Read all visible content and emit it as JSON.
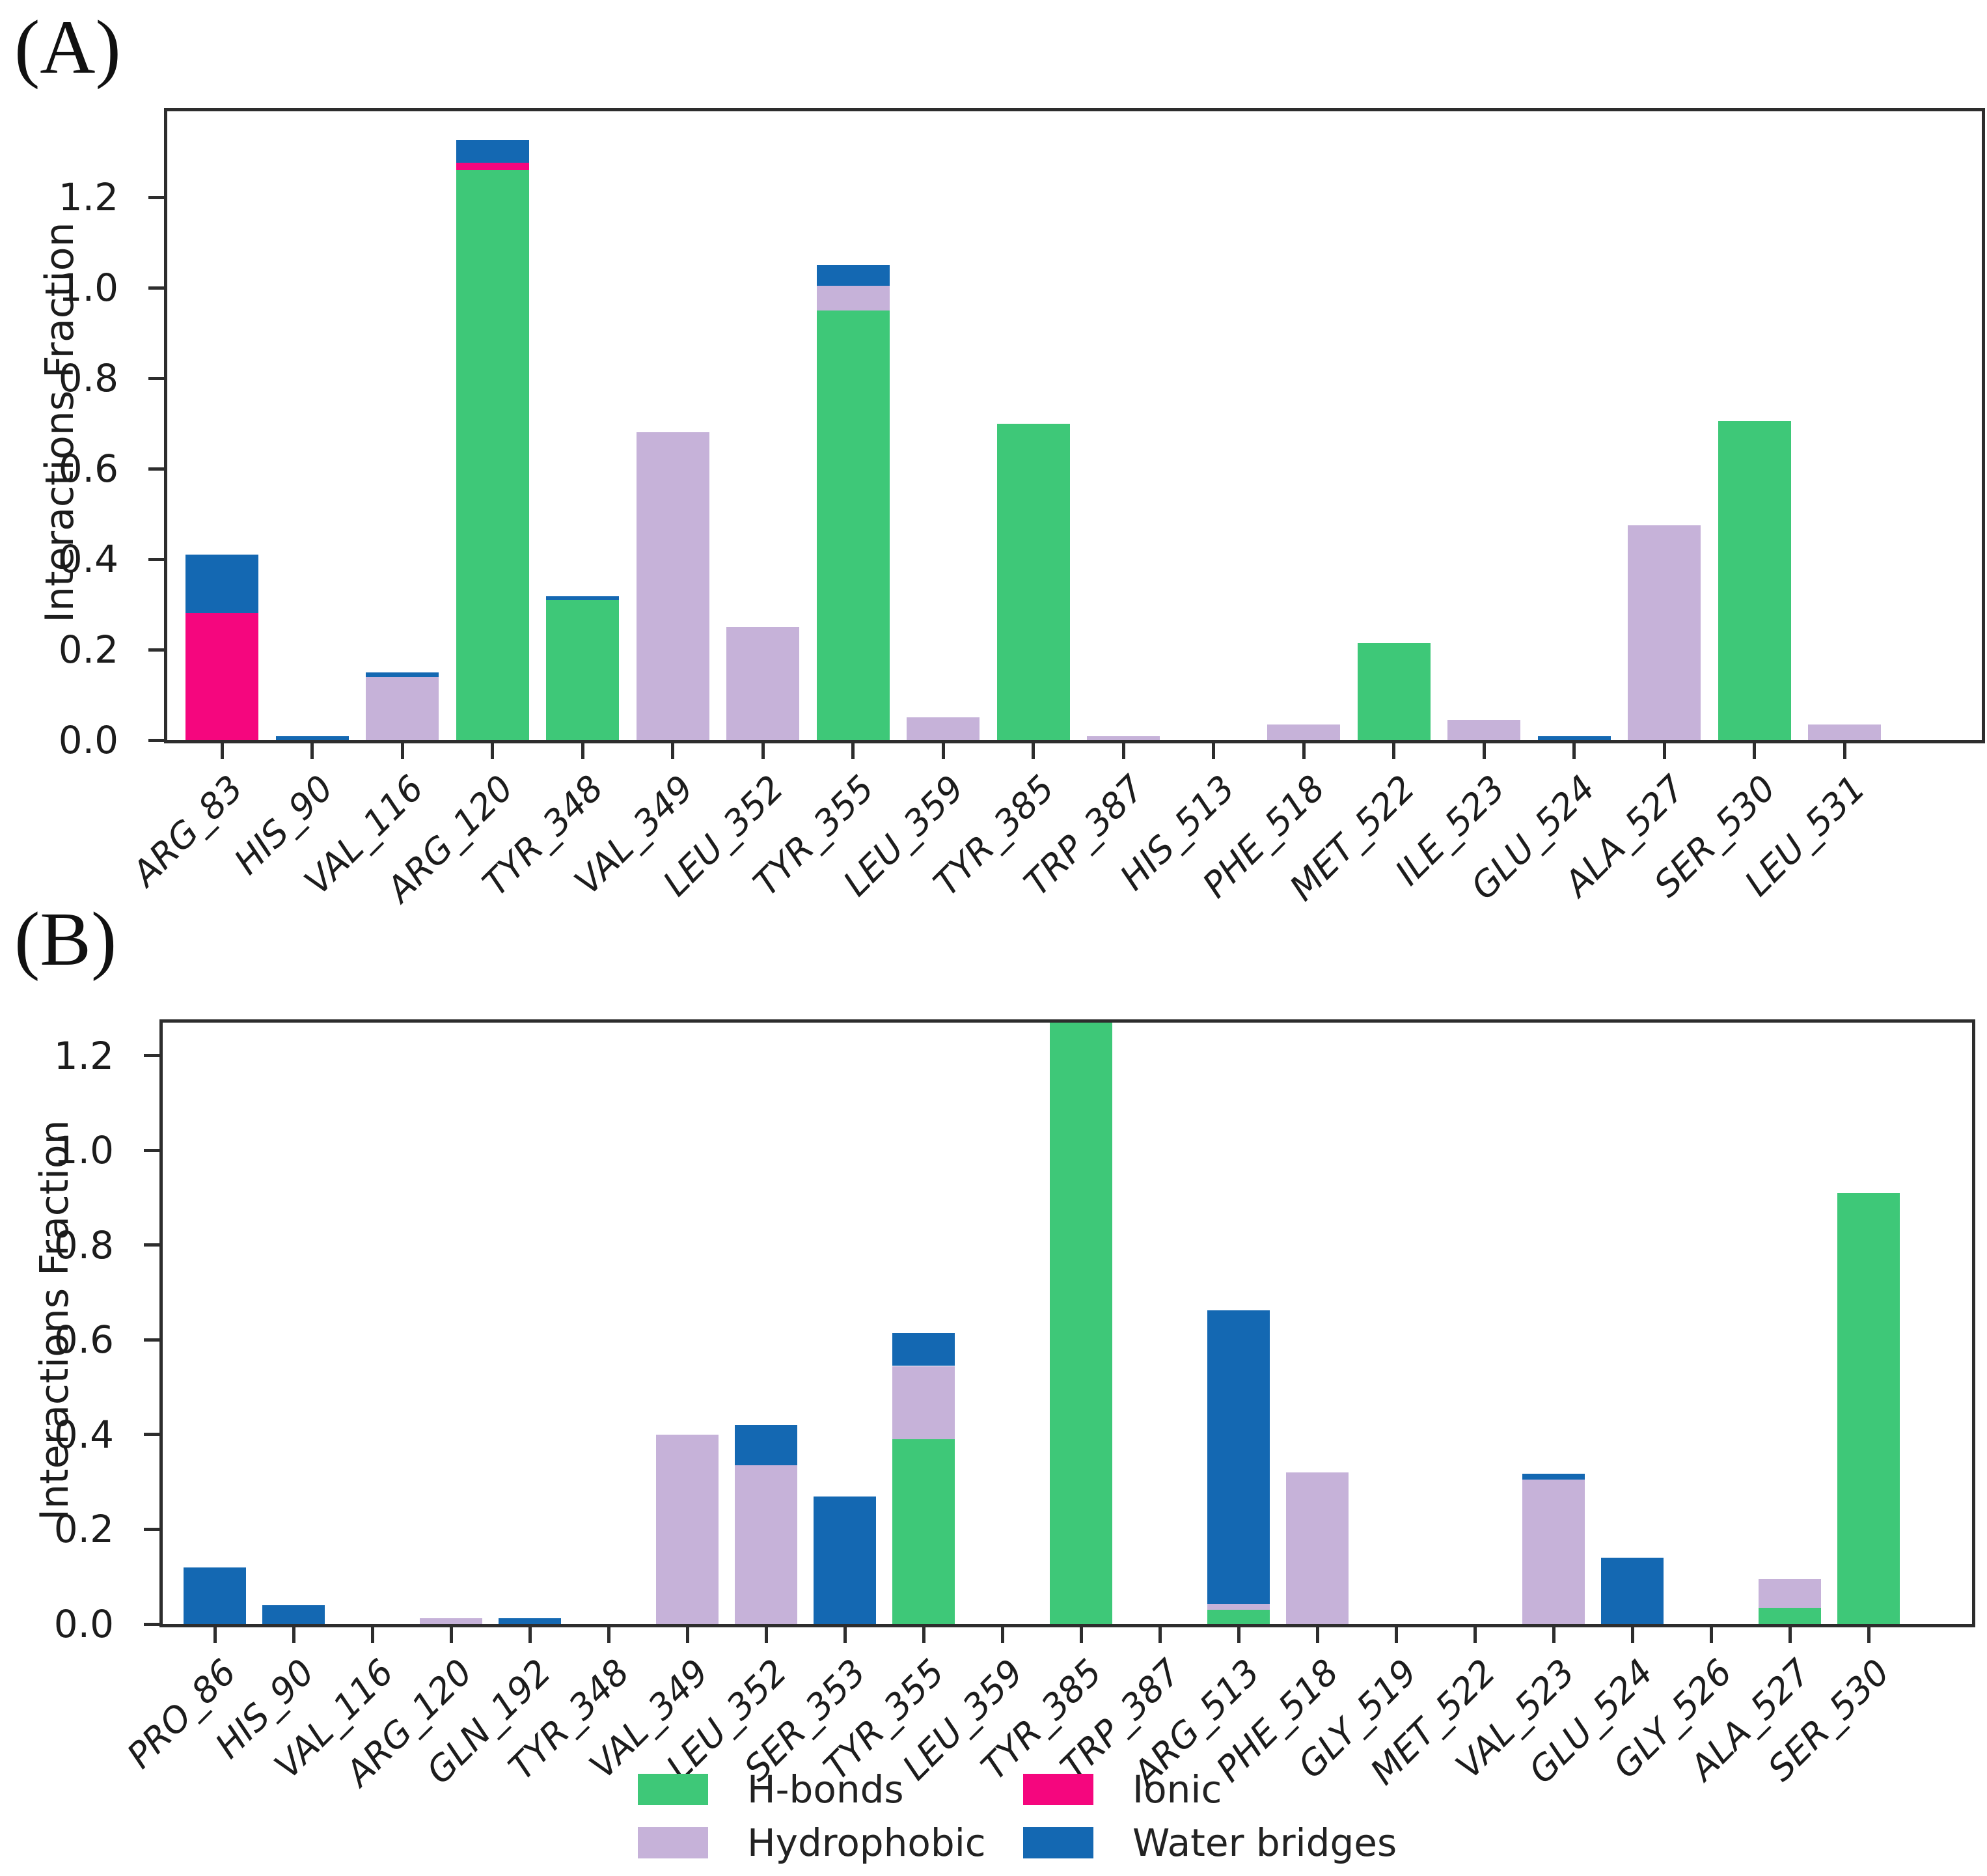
{
  "panel_a": {
    "label": "(A)"
  },
  "panel_b": {
    "label": "(B)"
  },
  "axis": {
    "ylabel": "Interactions Fraction",
    "yticks": [
      "0.0",
      "0.2",
      "0.4",
      "0.6",
      "0.8",
      "1.0",
      "1.2"
    ]
  },
  "colors": {
    "h_bonds": "#3ec878",
    "hydrophobic": "#c6b2d9",
    "ionic": "#f5067e",
    "water_bridges": "#1468b2",
    "frame": "#2d2d2d",
    "text": "#1c1c1c"
  },
  "legend": {
    "items": [
      {
        "label": "H-bonds",
        "color": "#3ec878",
        "key": "h_bonds"
      },
      {
        "label": "Hydrophobic",
        "color": "#c6b2d9",
        "key": "hydrophobic"
      },
      {
        "label": "Ionic",
        "color": "#f5067e",
        "key": "ionic"
      },
      {
        "label": "Water bridges",
        "color": "#1468b2",
        "key": "water_bridges"
      }
    ]
  },
  "chart_data": [
    {
      "id": "A",
      "type": "bar",
      "stacked": true,
      "title": "",
      "xlabel": "",
      "ylabel": "Interactions Fraction",
      "ylim": [
        0,
        1.39
      ],
      "yticks": [
        0.0,
        0.2,
        0.4,
        0.6,
        0.8,
        1.0,
        1.2
      ],
      "grid": false,
      "legend_position": "below-figure",
      "stack_order": [
        "H-bonds",
        "Hydrophobic",
        "Ionic",
        "Water bridges"
      ],
      "categories": [
        "ARG_83",
        "HIS_90",
        "VAL_116",
        "ARG_120",
        "TYR_348",
        "VAL_349",
        "LEU_352",
        "TYR_355",
        "LEU_359",
        "TYR_385",
        "TRP_387",
        "HIS_513",
        "PHE_518",
        "MET_522",
        "ILE_523",
        "GLU_524",
        "ALA_527",
        "SER_530",
        "LEU_531"
      ],
      "series": [
        {
          "name": "H-bonds",
          "values": [
            0,
            0,
            0,
            1.26,
            0.31,
            0,
            0,
            0.95,
            0,
            0.7,
            0,
            0,
            0,
            0.215,
            0,
            0,
            0,
            0.705,
            0
          ]
        },
        {
          "name": "Hydrophobic",
          "values": [
            0,
            0,
            0.14,
            0,
            0,
            0.68,
            0.25,
            0.055,
            0.05,
            0,
            0.008,
            0,
            0.035,
            0,
            0.045,
            0,
            0.475,
            0,
            0.035
          ]
        },
        {
          "name": "Ionic",
          "values": [
            0.28,
            0,
            0,
            0.017,
            0,
            0,
            0,
            0,
            0,
            0,
            0,
            0,
            0,
            0,
            0,
            0,
            0,
            0,
            0
          ]
        },
        {
          "name": "Water bridges",
          "values": [
            0.13,
            0.008,
            0.01,
            0.05,
            0.008,
            0,
            0,
            0.045,
            0,
            0,
            0,
            0,
            0,
            0,
            0,
            0.008,
            0,
            0,
            0
          ]
        }
      ]
    },
    {
      "id": "B",
      "type": "bar",
      "stacked": true,
      "title": "",
      "xlabel": "",
      "ylabel": "Interactions Fraction",
      "ylim": [
        0,
        1.27
      ],
      "yticks": [
        0.0,
        0.2,
        0.4,
        0.6,
        0.8,
        1.0,
        1.2
      ],
      "grid": false,
      "legend_position": "below-figure",
      "note": "TYR_385 bar exceeds the axis maximum and is clipped at the top of the plot",
      "stack_order": [
        "H-bonds",
        "Hydrophobic",
        "Ionic",
        "Water bridges"
      ],
      "categories": [
        "PRO_86",
        "HIS_90",
        "VAL_116",
        "ARG_120",
        "GLN_192",
        "TYR_348",
        "VAL_349",
        "LEU_352",
        "SER_353",
        "TYR_355",
        "LEU_359",
        "TYR_385",
        "TRP_387",
        "ARG_513",
        "PHE_518",
        "GLY_519",
        "MET_522",
        "VAL_523",
        "GLU_524",
        "GLY_526",
        "ALA_527",
        "SER_530"
      ],
      "series": [
        {
          "name": "H-bonds",
          "values": [
            0,
            0,
            0,
            0,
            0,
            0,
            0,
            0,
            0,
            0.39,
            0,
            1.33,
            0,
            0.03,
            0,
            0,
            0,
            0,
            0,
            0,
            0.035,
            0.91
          ]
        },
        {
          "name": "Hydrophobic",
          "values": [
            0,
            0,
            0,
            0.013,
            0,
            0,
            0.4,
            0.335,
            0,
            0.155,
            0,
            0,
            0,
            0.012,
            0.32,
            0,
            0,
            0.305,
            0,
            0,
            0.06,
            0
          ]
        },
        {
          "name": "Ionic",
          "values": [
            0,
            0,
            0,
            0,
            0,
            0,
            0,
            0,
            0,
            0,
            0,
            0,
            0,
            0,
            0,
            0,
            0,
            0,
            0,
            0,
            0,
            0
          ]
        },
        {
          "name": "Water bridges",
          "values": [
            0.12,
            0.04,
            0,
            0,
            0.013,
            0,
            0,
            0.085,
            0.27,
            0.07,
            0,
            0,
            0,
            0.62,
            0,
            0,
            0,
            0.012,
            0.14,
            0,
            0,
            0
          ]
        }
      ]
    }
  ]
}
